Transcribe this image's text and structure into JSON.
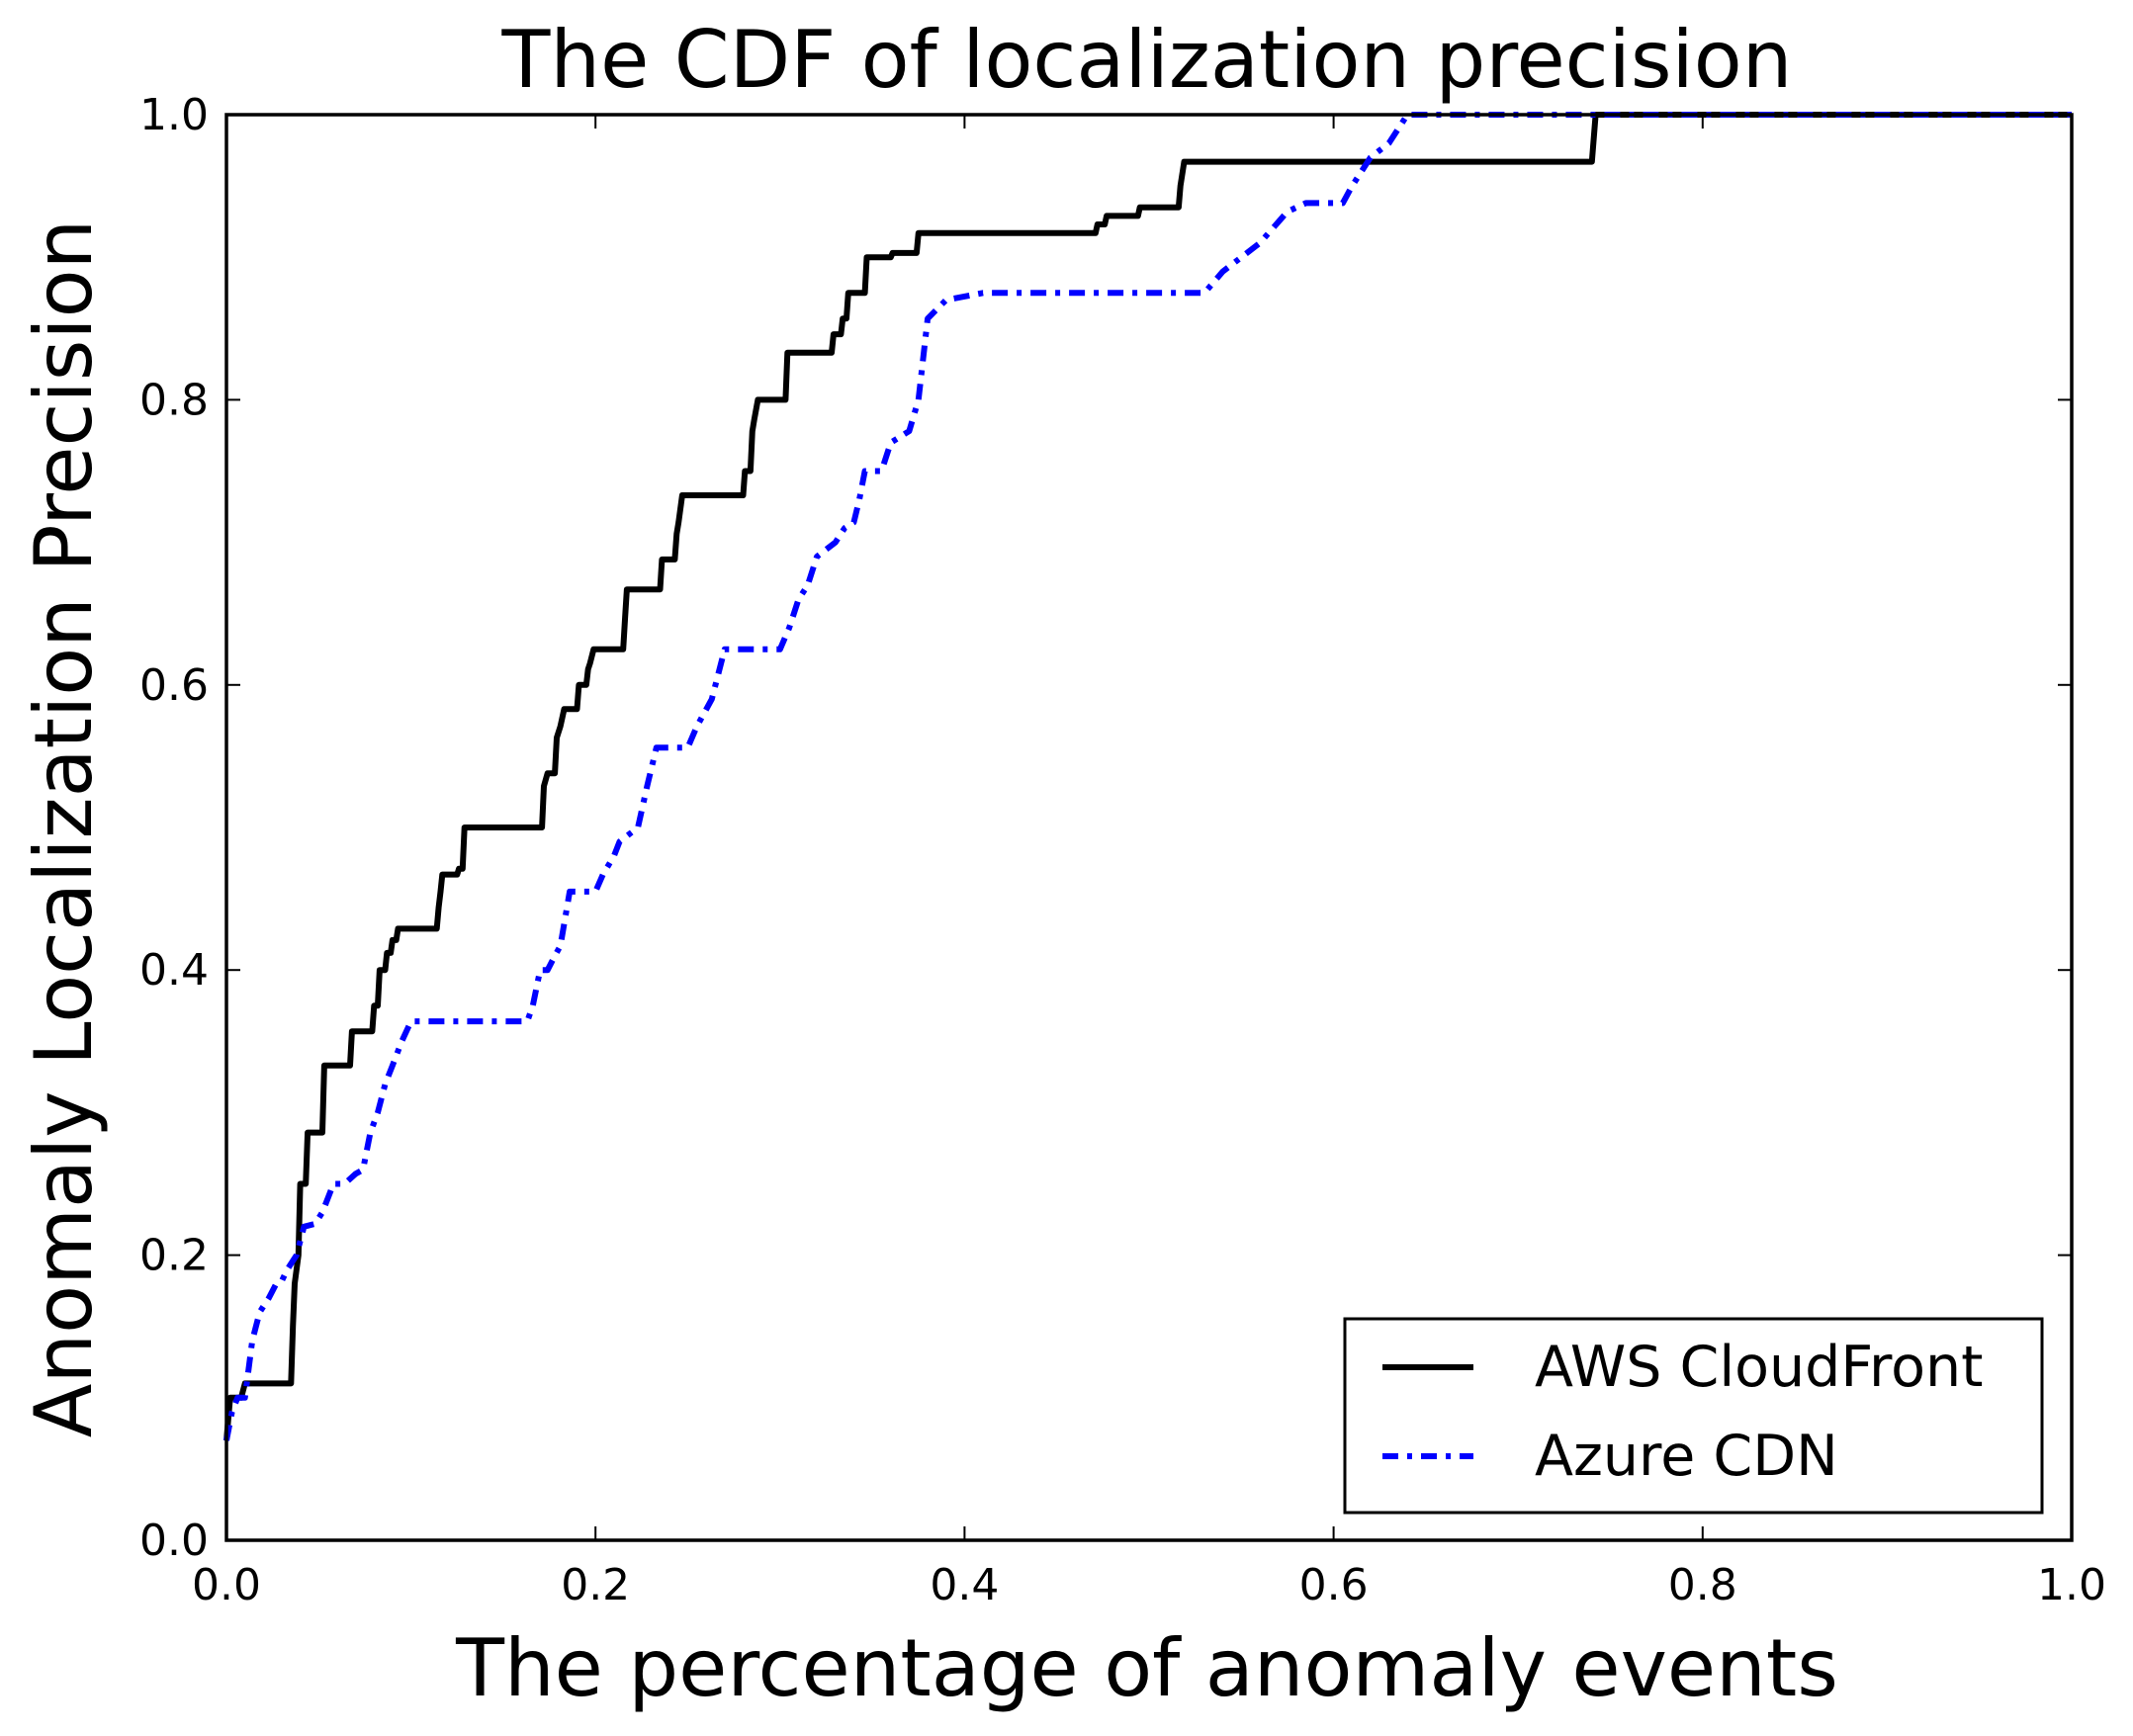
{
  "chart_data": {
    "type": "line",
    "title": "The CDF of localization precision",
    "xlabel": "The percentage of anomaly events",
    "ylabel": "Anomaly Localization Precision",
    "xlim": [
      0.0,
      1.0
    ],
    "ylim": [
      0.0,
      1.0
    ],
    "xticks": [
      "0.0",
      "0.2",
      "0.4",
      "0.6",
      "0.8",
      "1.0"
    ],
    "yticks": [
      "0.0",
      "0.2",
      "0.4",
      "0.6",
      "0.8",
      "1.0"
    ],
    "grid": false,
    "legend_position": "lower-right",
    "series": [
      {
        "name": "AWS CloudFront",
        "color": "#000000",
        "style": "solid",
        "points": [
          [
            0.0,
            0.07
          ],
          [
            0.002,
            0.1
          ],
          [
            0.008,
            0.1
          ],
          [
            0.01,
            0.11
          ],
          [
            0.035,
            0.11
          ],
          [
            0.036,
            0.15
          ],
          [
            0.037,
            0.18
          ],
          [
            0.039,
            0.2
          ],
          [
            0.04,
            0.25
          ],
          [
            0.043,
            0.25
          ],
          [
            0.044,
            0.286
          ],
          [
            0.052,
            0.286
          ],
          [
            0.053,
            0.333
          ],
          [
            0.067,
            0.333
          ],
          [
            0.068,
            0.357
          ],
          [
            0.079,
            0.357
          ],
          [
            0.08,
            0.375
          ],
          [
            0.082,
            0.375
          ],
          [
            0.083,
            0.4
          ],
          [
            0.086,
            0.4
          ],
          [
            0.087,
            0.412
          ],
          [
            0.089,
            0.412
          ],
          [
            0.09,
            0.421
          ],
          [
            0.092,
            0.421
          ],
          [
            0.093,
            0.429
          ],
          [
            0.114,
            0.429
          ],
          [
            0.115,
            0.444
          ],
          [
            0.116,
            0.455
          ],
          [
            0.117,
            0.467
          ],
          [
            0.125,
            0.467
          ],
          [
            0.126,
            0.471
          ],
          [
            0.128,
            0.471
          ],
          [
            0.129,
            0.5
          ],
          [
            0.171,
            0.5
          ],
          [
            0.172,
            0.529
          ],
          [
            0.174,
            0.538
          ],
          [
            0.178,
            0.538
          ],
          [
            0.179,
            0.563
          ],
          [
            0.181,
            0.571
          ],
          [
            0.183,
            0.583
          ],
          [
            0.19,
            0.583
          ],
          [
            0.191,
            0.6
          ],
          [
            0.195,
            0.6
          ],
          [
            0.196,
            0.611
          ],
          [
            0.197,
            0.615
          ],
          [
            0.199,
            0.625
          ],
          [
            0.215,
            0.625
          ],
          [
            0.216,
            0.647
          ],
          [
            0.217,
            0.667
          ],
          [
            0.235,
            0.667
          ],
          [
            0.236,
            0.688
          ],
          [
            0.243,
            0.688
          ],
          [
            0.244,
            0.706
          ],
          [
            0.245,
            0.714
          ],
          [
            0.247,
            0.733
          ],
          [
            0.28,
            0.733
          ],
          [
            0.281,
            0.75
          ],
          [
            0.284,
            0.75
          ],
          [
            0.285,
            0.778
          ],
          [
            0.286,
            0.786
          ],
          [
            0.288,
            0.8
          ],
          [
            0.303,
            0.8
          ],
          [
            0.304,
            0.833
          ],
          [
            0.328,
            0.833
          ],
          [
            0.329,
            0.846
          ],
          [
            0.333,
            0.846
          ],
          [
            0.334,
            0.857
          ],
          [
            0.336,
            0.857
          ],
          [
            0.337,
            0.875
          ],
          [
            0.346,
            0.875
          ],
          [
            0.347,
            0.9
          ],
          [
            0.36,
            0.9
          ],
          [
            0.361,
            0.903
          ],
          [
            0.374,
            0.903
          ],
          [
            0.375,
            0.917
          ],
          [
            0.471,
            0.917
          ],
          [
            0.472,
            0.923
          ],
          [
            0.476,
            0.923
          ],
          [
            0.477,
            0.929
          ],
          [
            0.494,
            0.929
          ],
          [
            0.495,
            0.935
          ],
          [
            0.516,
            0.935
          ],
          [
            0.517,
            0.95
          ],
          [
            0.519,
            0.967
          ],
          [
            0.74,
            0.967
          ],
          [
            0.742,
            1.0
          ],
          [
            1.0,
            1.0
          ]
        ]
      },
      {
        "name": "Azure CDN",
        "color": "#0000ff",
        "style": "dashdot",
        "points": [
          [
            0.0,
            0.07
          ],
          [
            0.003,
            0.09
          ],
          [
            0.006,
            0.1
          ],
          [
            0.01,
            0.1
          ],
          [
            0.012,
            0.12
          ],
          [
            0.014,
            0.14
          ],
          [
            0.018,
            0.16
          ],
          [
            0.023,
            0.17
          ],
          [
            0.027,
            0.18
          ],
          [
            0.03,
            0.182
          ],
          [
            0.033,
            0.19
          ],
          [
            0.038,
            0.2
          ],
          [
            0.042,
            0.22
          ],
          [
            0.048,
            0.222
          ],
          [
            0.052,
            0.23
          ],
          [
            0.058,
            0.25
          ],
          [
            0.064,
            0.25
          ],
          [
            0.07,
            0.257
          ],
          [
            0.074,
            0.26
          ],
          [
            0.078,
            0.286
          ],
          [
            0.082,
            0.3
          ],
          [
            0.086,
            0.32
          ],
          [
            0.09,
            0.333
          ],
          [
            0.095,
            0.35
          ],
          [
            0.1,
            0.364
          ],
          [
            0.163,
            0.364
          ],
          [
            0.166,
            0.375
          ],
          [
            0.17,
            0.4
          ],
          [
            0.174,
            0.4
          ],
          [
            0.178,
            0.41
          ],
          [
            0.181,
            0.417
          ],
          [
            0.186,
            0.455
          ],
          [
            0.2,
            0.455
          ],
          [
            0.204,
            0.467
          ],
          [
            0.21,
            0.48
          ],
          [
            0.213,
            0.49
          ],
          [
            0.223,
            0.5
          ],
          [
            0.228,
            0.529
          ],
          [
            0.233,
            0.556
          ],
          [
            0.25,
            0.556
          ],
          [
            0.255,
            0.571
          ],
          [
            0.263,
            0.59
          ],
          [
            0.27,
            0.625
          ],
          [
            0.3,
            0.625
          ],
          [
            0.305,
            0.64
          ],
          [
            0.31,
            0.66
          ],
          [
            0.315,
            0.67
          ],
          [
            0.32,
            0.69
          ],
          [
            0.33,
            0.7
          ],
          [
            0.335,
            0.71
          ],
          [
            0.34,
            0.714
          ],
          [
            0.343,
            0.73
          ],
          [
            0.346,
            0.75
          ],
          [
            0.355,
            0.75
          ],
          [
            0.36,
            0.77
          ],
          [
            0.37,
            0.778
          ],
          [
            0.375,
            0.8
          ],
          [
            0.38,
            0.857
          ],
          [
            0.39,
            0.87
          ],
          [
            0.41,
            0.875
          ],
          [
            0.53,
            0.875
          ],
          [
            0.54,
            0.89
          ],
          [
            0.55,
            0.9
          ],
          [
            0.56,
            0.91
          ],
          [
            0.575,
            0.932
          ],
          [
            0.585,
            0.938
          ],
          [
            0.605,
            0.938
          ],
          [
            0.61,
            0.95
          ],
          [
            0.62,
            0.97
          ],
          [
            0.63,
            0.98
          ],
          [
            0.64,
            1.0
          ],
          [
            1.0,
            1.0
          ]
        ]
      }
    ]
  }
}
